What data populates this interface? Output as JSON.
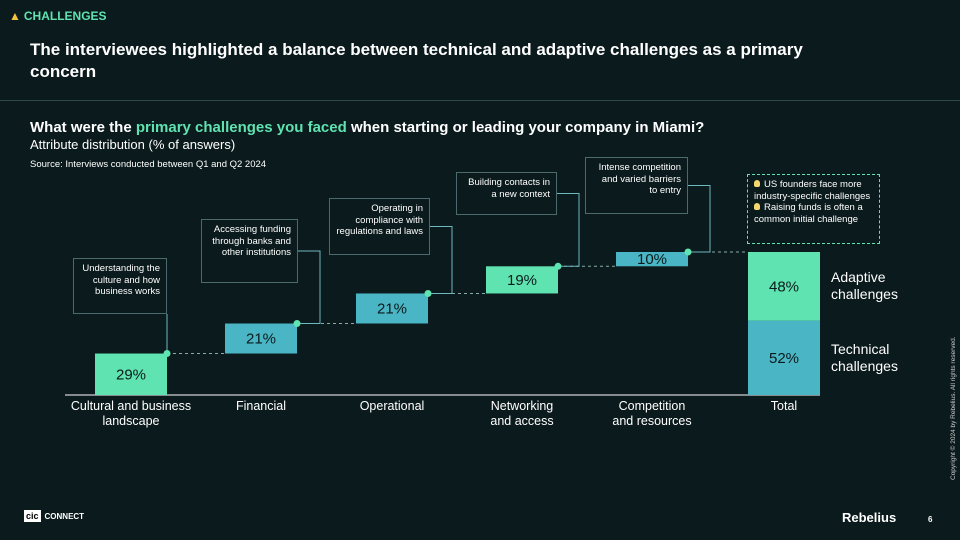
{
  "header": {
    "tag": "CHALLENGES",
    "headline": "The interviewees highlighted a balance between technical and adaptive challenges as a primary concern"
  },
  "question": {
    "before": "What were the ",
    "highlight": "primary challenges you faced",
    "after": " when starting or leading your company in Miami?"
  },
  "subtitle": "Attribute distribution (% of answers)",
  "source": "Source: Interviews conducted between Q1 and Q2 2024",
  "chart_data": {
    "type": "waterfall",
    "categories": [
      "Cultural and business landscape",
      "Financial",
      "Operational",
      "Networking and access",
      "Competition and resources"
    ],
    "values": [
      29,
      21,
      21,
      19,
      10
    ],
    "value_labels": [
      "29%",
      "21%",
      "21%",
      "19%",
      "10%"
    ],
    "colors": [
      "#5fe3b0",
      "#4ab5c4",
      "#4ab5c4",
      "#5fe3b0",
      "#4ab5c4"
    ],
    "annotations": [
      "Understanding the culture and how business works",
      "Accessing funding through banks and other institutions",
      "Operating in compliance with regulations and laws",
      "Building contacts in a new context",
      "Intense competition and varied barriers to entry"
    ],
    "total": {
      "label": "Total",
      "series": [
        {
          "name": "Technical challenges",
          "color": "#4ab5c4",
          "values": [
            52
          ],
          "value_labels": [
            "52%"
          ]
        },
        {
          "name": "Adaptive challenges",
          "color": "#5fe3b0",
          "values": [
            48
          ],
          "value_labels": [
            "48%"
          ]
        }
      ],
      "notes": [
        "US founders face more industry-specific challenges",
        "Raising funds is often a common initial challenge"
      ]
    }
  },
  "footer": {
    "logo_left_mark": "cic",
    "logo_left_text": "CONNECT",
    "logo_right": "Rebelius",
    "page": "6",
    "copyright": "Copyright © 2024 by Rebelius. All rights reserved."
  }
}
